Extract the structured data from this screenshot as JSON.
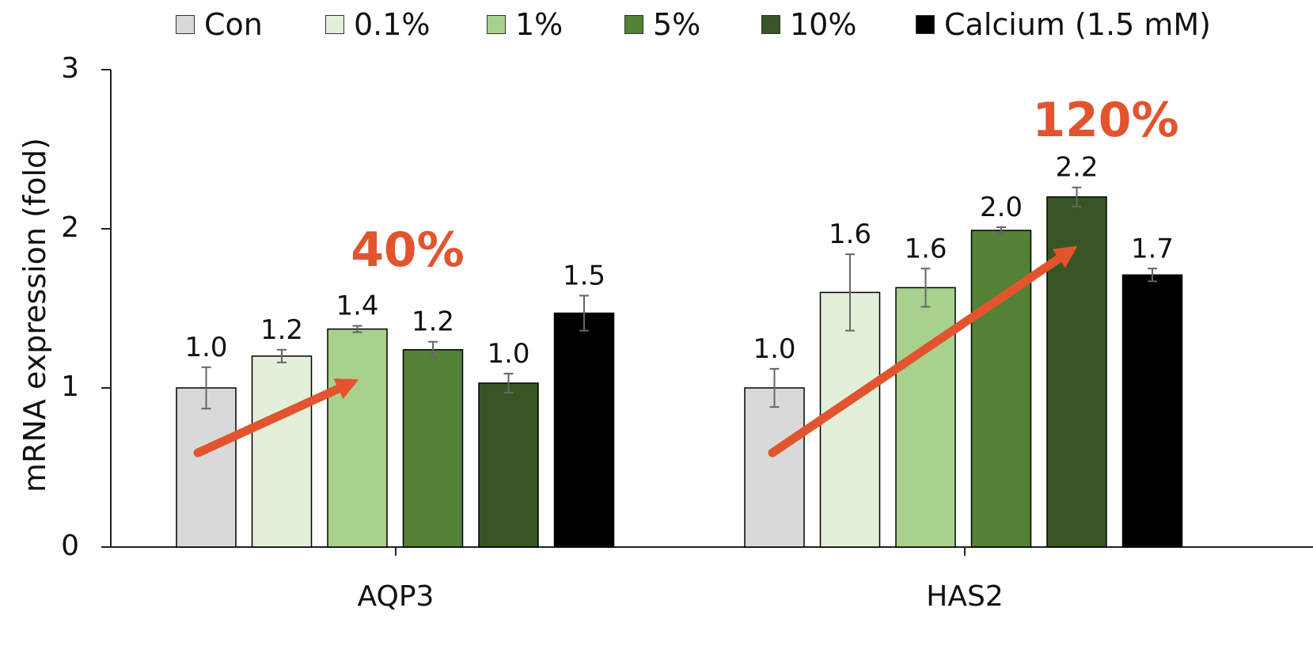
{
  "chart_data": {
    "type": "bar",
    "categories": [
      "AQP3",
      "HAS2"
    ],
    "series": [
      {
        "name": "Con",
        "color": "#d9d9d9",
        "values": [
          1.0,
          1.0
        ],
        "errors": [
          0.13,
          0.12
        ],
        "labels": [
          "1.0",
          "1.0"
        ]
      },
      {
        "name": "0.1%",
        "color": "#e2efd9",
        "values": [
          1.2,
          1.6
        ],
        "errors": [
          0.04,
          0.24
        ],
        "labels": [
          "1.2",
          "1.6"
        ]
      },
      {
        "name": "1%",
        "color": "#a9d18e",
        "values": [
          1.37,
          1.63
        ],
        "errors": [
          0.02,
          0.12
        ],
        "labels": [
          "1.4",
          "1.6"
        ]
      },
      {
        "name": "5%",
        "color": "#538135",
        "values": [
          1.24,
          1.99
        ],
        "errors": [
          0.05,
          0.02
        ],
        "labels": [
          "1.2",
          "2.0"
        ]
      },
      {
        "name": "10%",
        "color": "#375623",
        "values": [
          1.03,
          2.2
        ],
        "errors": [
          0.06,
          0.06
        ],
        "labels": [
          "1.0",
          "2.2"
        ]
      },
      {
        "name": "Calcium (1.5 mM)",
        "color": "#000000",
        "values": [
          1.47,
          1.71
        ],
        "errors": [
          0.11,
          0.04
        ],
        "labels": [
          "1.5",
          "1.7"
        ]
      }
    ],
    "ylabel": "mRNA expression (fold)",
    "ylim": [
      0,
      3
    ],
    "yticks": [
      "0",
      "1",
      "2",
      "3"
    ],
    "grid": false,
    "legend_position": "top",
    "annotations": [
      {
        "text": "40%",
        "color": "#e2542e"
      },
      {
        "text": "120%",
        "color": "#e2542e"
      }
    ]
  }
}
